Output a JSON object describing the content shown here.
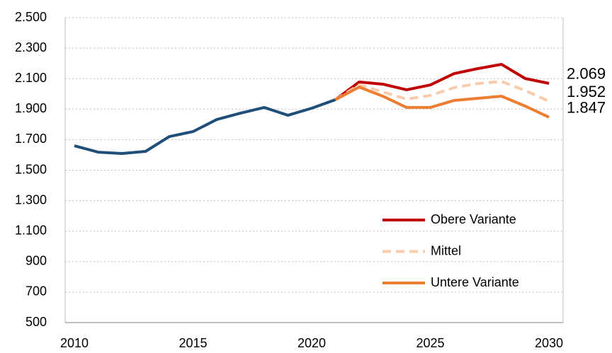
{
  "chart_data": {
    "type": "line",
    "categories": [
      2010,
      null,
      null,
      null,
      null,
      2015,
      null,
      null,
      null,
      null,
      2020,
      null,
      null,
      null,
      null,
      2025,
      null,
      null,
      null,
      null,
      2030
    ],
    "series": [
      {
        "color": "#1f4e79",
        "values": [
          1660,
          1618,
          1609,
          1623,
          1720,
          1753,
          1832,
          1874,
          1911,
          1860,
          1906,
          1962,
          null,
          null,
          null,
          null,
          null,
          null,
          null,
          null,
          null
        ]
      },
      {
        "name": "Obere Variante",
        "color": "#c00000",
        "values": [
          null,
          null,
          null,
          null,
          null,
          null,
          null,
          null,
          null,
          null,
          null,
          1962,
          2078,
          2064,
          2027,
          2059,
          2133,
          2166,
          2194,
          2101,
          2069
        ],
        "value_labels": [
          null,
          null,
          null,
          null,
          null,
          null,
          null,
          null,
          null,
          null,
          null,
          null,
          null,
          null,
          null,
          null,
          null,
          null,
          null,
          null,
          "2.069"
        ]
      },
      {
        "name": "Mittel",
        "color": "#f8cbad",
        "dashed": true,
        "values": [
          null,
          null,
          null,
          null,
          null,
          null,
          null,
          null,
          null,
          null,
          null,
          1962,
          2059,
          2013,
          1966,
          1990,
          2041,
          2068,
          2082,
          2022,
          1952
        ],
        "value_labels": [
          null,
          null,
          null,
          null,
          null,
          null,
          null,
          null,
          null,
          null,
          null,
          null,
          null,
          null,
          null,
          null,
          null,
          null,
          null,
          null,
          "1.952"
        ]
      },
      {
        "name": "Untere Variante",
        "color": "#ed7d31",
        "values": [
          null,
          null,
          null,
          null,
          null,
          null,
          null,
          null,
          null,
          null,
          null,
          1962,
          2045,
          1985,
          1911,
          1911,
          1957,
          1971,
          1985,
          1920,
          1847
        ],
        "value_labels": [
          null,
          null,
          null,
          null,
          null,
          null,
          null,
          null,
          null,
          null,
          null,
          null,
          null,
          null,
          null,
          null,
          null,
          null,
          null,
          null,
          "1.847"
        ]
      }
    ],
    "ylim": [
      500,
      2500
    ],
    "yticks": [
      500,
      700,
      900,
      {
        "value": 1100,
        "label": "1.100"
      },
      {
        "value": 1300,
        "label": "1.300"
      },
      {
        "value": 1500,
        "label": "1.500"
      },
      {
        "value": 1700,
        "label": "1.700"
      },
      {
        "value": 1900,
        "label": "1.900"
      },
      {
        "value": 2100,
        "label": "2.100"
      },
      {
        "value": 2300,
        "label": "2.300"
      },
      {
        "value": 2500,
        "label": "2.500"
      }
    ],
    "grid": true,
    "legend": "lower right"
  }
}
